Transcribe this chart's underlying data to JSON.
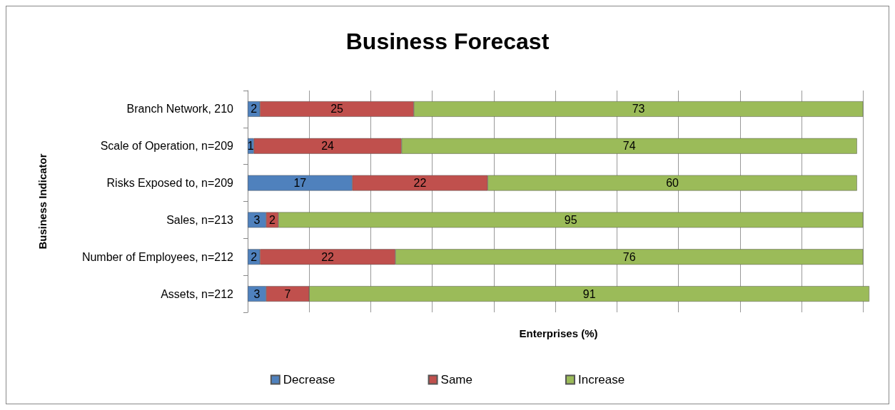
{
  "chart_data": {
    "type": "bar",
    "orientation": "horizontal",
    "stacked": true,
    "title": "Business Forecast",
    "xlabel": "Enterprises (%)",
    "ylabel": "Business Indicator",
    "categories": [
      "Branch Network, 210",
      "Scale of Operation, n=209",
      "Risks Exposed to, n=209",
      "Sales, n=213",
      "Number of Employees, n=212",
      "Assets, n=212"
    ],
    "series": [
      {
        "name": "Decrease",
        "color": "#4f81bd",
        "values": [
          2,
          1,
          17,
          3,
          2,
          3
        ]
      },
      {
        "name": "Same",
        "color": "#c0504d",
        "values": [
          25,
          24,
          22,
          2,
          22,
          7
        ]
      },
      {
        "name": "Increase",
        "color": "#9bbb59",
        "values": [
          73,
          74,
          60,
          95,
          76,
          91
        ]
      }
    ],
    "xlim": [
      0,
      101
    ],
    "xticks": [
      {
        "value": 0,
        "label": null
      },
      {
        "value": 10,
        "label": null
      },
      {
        "value": 20,
        "label": null
      },
      {
        "value": 30,
        "label": null
      },
      {
        "value": 40,
        "label": null
      },
      {
        "value": 50,
        "label": null
      },
      {
        "value": 60,
        "label": null
      },
      {
        "value": 70,
        "label": null
      },
      {
        "value": 80,
        "label": null
      },
      {
        "value": 90,
        "label": null
      },
      {
        "value": 100,
        "label": null
      }
    ],
    "grid": "x",
    "legend": "bottom",
    "tick_labels": "y",
    "data_labels": true
  }
}
